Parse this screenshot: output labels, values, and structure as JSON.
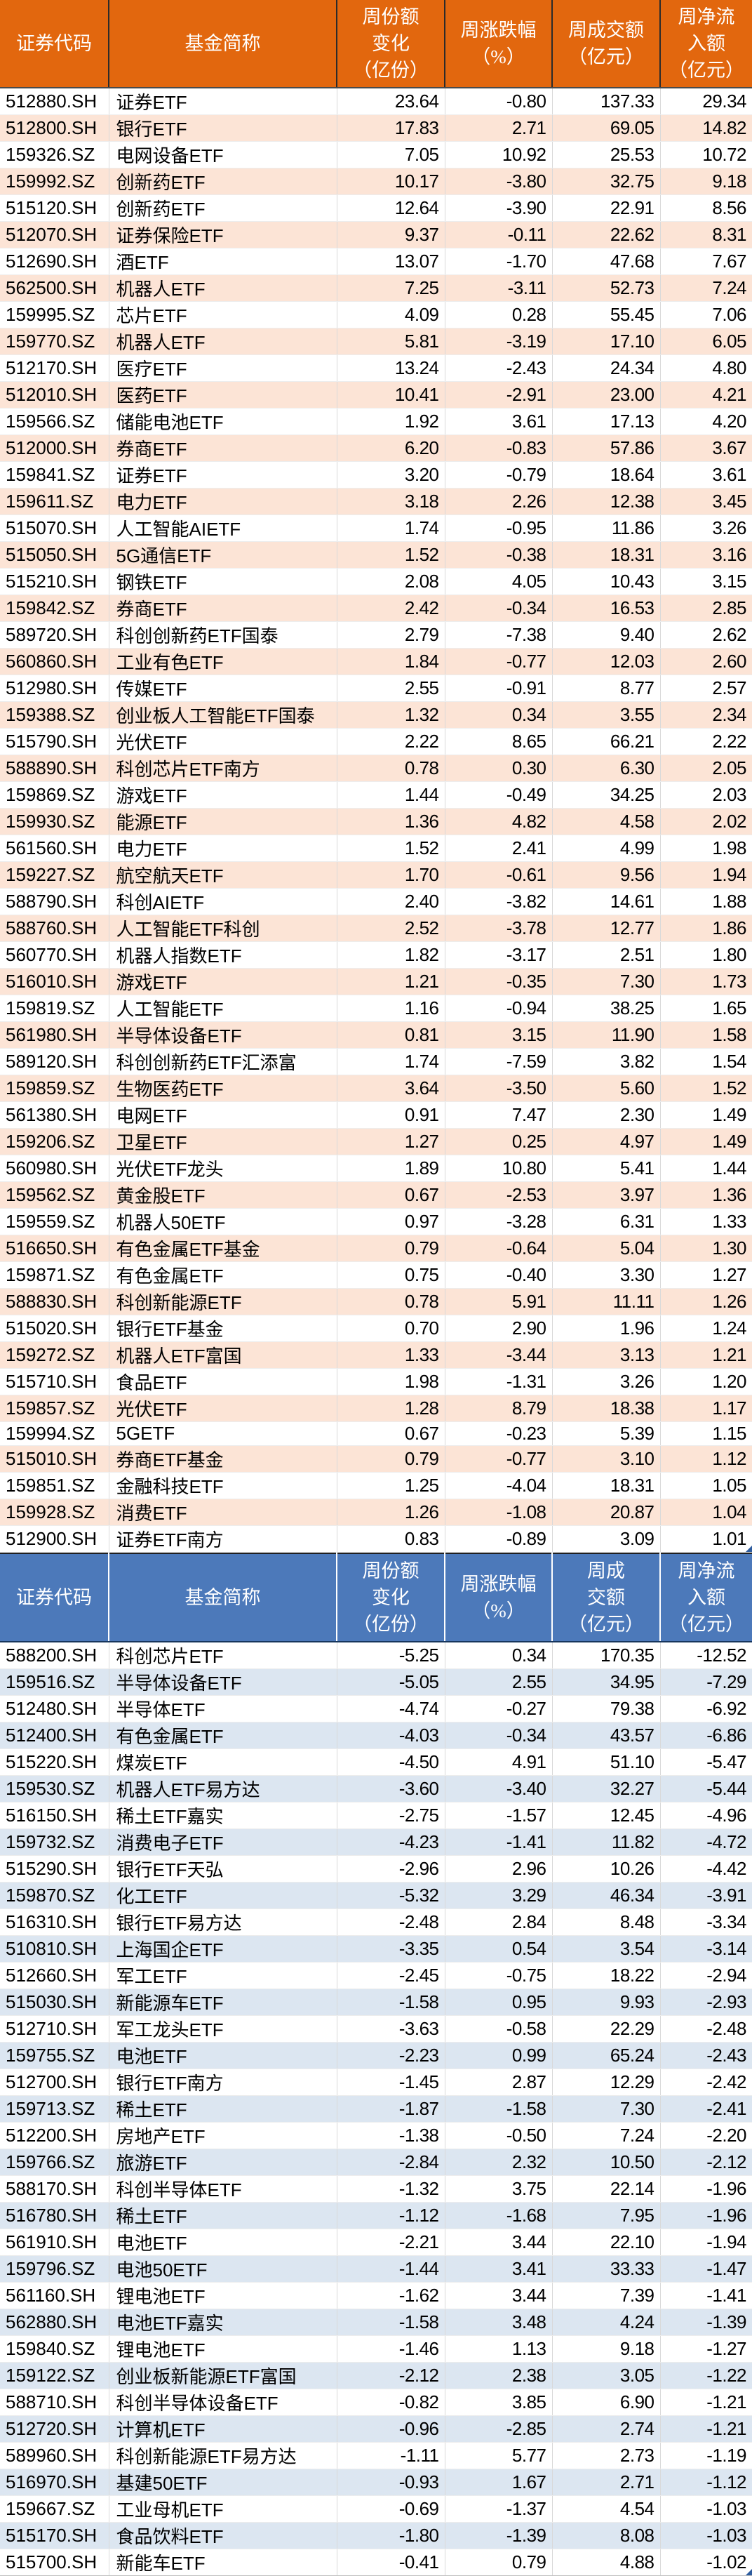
{
  "chart_data": [
    {
      "type": "table",
      "columns": [
        "证券代码",
        "基金简称",
        "周份额\n变化\n（亿份）",
        "周涨跌幅\n（%）",
        "周成交额\n（亿元）",
        "周净流\n入额\n（亿元）"
      ],
      "style": {
        "header_bg": "#E2670E",
        "alt_row_bg": "#FCE4D6",
        "header_divider": "#2B2B2B",
        "header_bottom": "#4A4A4A"
      },
      "rows": [
        [
          "512880.SH",
          "证券ETF",
          "23.64",
          "-0.80",
          "137.33",
          "29.34"
        ],
        [
          "512800.SH",
          "银行ETF",
          "17.83",
          "2.71",
          "69.05",
          "14.82"
        ],
        [
          "159326.SZ",
          "电网设备ETF",
          "7.05",
          "10.92",
          "25.53",
          "10.72"
        ],
        [
          "159992.SZ",
          "创新药ETF",
          "10.17",
          "-3.80",
          "32.75",
          "9.18"
        ],
        [
          "515120.SH",
          "创新药ETF",
          "12.64",
          "-3.90",
          "22.91",
          "8.56"
        ],
        [
          "512070.SH",
          "证券保险ETF",
          "9.37",
          "-0.11",
          "22.62",
          "8.31"
        ],
        [
          "512690.SH",
          "酒ETF",
          "13.07",
          "-1.70",
          "47.68",
          "7.67"
        ],
        [
          "562500.SH",
          "机器人ETF",
          "7.25",
          "-3.11",
          "52.73",
          "7.24"
        ],
        [
          "159995.SZ",
          "芯片ETF",
          "4.09",
          "0.28",
          "55.45",
          "7.06"
        ],
        [
          "159770.SZ",
          "机器人ETF",
          "5.81",
          "-3.19",
          "17.10",
          "6.05"
        ],
        [
          "512170.SH",
          "医疗ETF",
          "13.24",
          "-2.43",
          "24.34",
          "4.80"
        ],
        [
          "512010.SH",
          "医药ETF",
          "10.41",
          "-2.91",
          "23.00",
          "4.21"
        ],
        [
          "159566.SZ",
          "储能电池ETF",
          "1.92",
          "3.61",
          "17.13",
          "4.20"
        ],
        [
          "512000.SH",
          "券商ETF",
          "6.20",
          "-0.83",
          "57.86",
          "3.67"
        ],
        [
          "159841.SZ",
          "证券ETF",
          "3.20",
          "-0.79",
          "18.64",
          "3.61"
        ],
        [
          "159611.SZ",
          "电力ETF",
          "3.18",
          "2.26",
          "12.38",
          "3.45"
        ],
        [
          "515070.SH",
          "人工智能AIETF",
          "1.74",
          "-0.95",
          "11.86",
          "3.26"
        ],
        [
          "515050.SH",
          "5G通信ETF",
          "1.52",
          "-0.38",
          "18.31",
          "3.16"
        ],
        [
          "515210.SH",
          "钢铁ETF",
          "2.08",
          "4.05",
          "10.43",
          "3.15"
        ],
        [
          "159842.SZ",
          "券商ETF",
          "2.42",
          "-0.34",
          "16.53",
          "2.85"
        ],
        [
          "589720.SH",
          "科创创新药ETF国泰",
          "2.79",
          "-7.38",
          "9.40",
          "2.62"
        ],
        [
          "560860.SH",
          "工业有色ETF",
          "1.84",
          "-0.77",
          "12.03",
          "2.60"
        ],
        [
          "512980.SH",
          "传媒ETF",
          "2.55",
          "-0.91",
          "8.77",
          "2.57"
        ],
        [
          "159388.SZ",
          "创业板人工智能ETF国泰",
          "1.32",
          "0.34",
          "3.55",
          "2.34"
        ],
        [
          "515790.SH",
          "光伏ETF",
          "2.22",
          "8.65",
          "66.21",
          "2.22"
        ],
        [
          "588890.SH",
          "科创芯片ETF南方",
          "0.78",
          "0.30",
          "6.30",
          "2.05"
        ],
        [
          "159869.SZ",
          "游戏ETF",
          "1.44",
          "-0.49",
          "34.25",
          "2.03"
        ],
        [
          "159930.SZ",
          "能源ETF",
          "1.36",
          "4.82",
          "4.58",
          "2.02"
        ],
        [
          "561560.SH",
          "电力ETF",
          "1.52",
          "2.41",
          "4.99",
          "1.98"
        ],
        [
          "159227.SZ",
          "航空航天ETF",
          "1.70",
          "-0.61",
          "9.56",
          "1.94"
        ],
        [
          "588790.SH",
          "科创AIETF",
          "2.40",
          "-3.82",
          "14.61",
          "1.88"
        ],
        [
          "588760.SH",
          "人工智能ETF科创",
          "2.52",
          "-3.78",
          "12.77",
          "1.86"
        ],
        [
          "560770.SH",
          "机器人指数ETF",
          "1.82",
          "-3.17",
          "2.51",
          "1.80"
        ],
        [
          "516010.SH",
          "游戏ETF",
          "1.21",
          "-0.35",
          "7.30",
          "1.73"
        ],
        [
          "159819.SZ",
          "人工智能ETF",
          "1.16",
          "-0.94",
          "38.25",
          "1.65"
        ],
        [
          "561980.SH",
          "半导体设备ETF",
          "0.81",
          "3.15",
          "11.90",
          "1.58"
        ],
        [
          "589120.SH",
          "科创创新药ETF汇添富",
          "1.74",
          "-7.59",
          "3.82",
          "1.54"
        ],
        [
          "159859.SZ",
          "生物医药ETF",
          "3.64",
          "-3.50",
          "5.60",
          "1.52"
        ],
        [
          "561380.SH",
          "电网ETF",
          "0.91",
          "7.47",
          "2.30",
          "1.49"
        ],
        [
          "159206.SZ",
          "卫星ETF",
          "1.27",
          "0.25",
          "4.97",
          "1.49"
        ],
        [
          "560980.SH",
          "光伏ETF龙头",
          "1.89",
          "10.80",
          "5.41",
          "1.44"
        ],
        [
          "159562.SZ",
          "黄金股ETF",
          "0.67",
          "-2.53",
          "3.97",
          "1.36"
        ],
        [
          "159559.SZ",
          "机器人50ETF",
          "0.97",
          "-3.28",
          "6.31",
          "1.33"
        ],
        [
          "516650.SH",
          "有色金属ETF基金",
          "0.79",
          "-0.64",
          "5.04",
          "1.30"
        ],
        [
          "159871.SZ",
          "有色金属ETF",
          "0.75",
          "-0.40",
          "3.30",
          "1.27"
        ],
        [
          "588830.SH",
          "科创新能源ETF",
          "0.78",
          "5.91",
          "11.11",
          "1.26"
        ],
        [
          "515020.SH",
          "银行ETF基金",
          "0.70",
          "2.90",
          "1.96",
          "1.24"
        ],
        [
          "159272.SZ",
          "机器人ETF富国",
          "1.33",
          "-3.44",
          "3.13",
          "1.21"
        ],
        [
          "515710.SH",
          "食品ETF",
          "1.98",
          "-1.31",
          "3.26",
          "1.20"
        ],
        [
          "159857.SZ",
          "光伏ETF",
          "1.28",
          "8.79",
          "18.38",
          "1.17"
        ],
        [
          "159994.SZ",
          "5GETF",
          "0.67",
          "-0.23",
          "5.39",
          "1.15"
        ],
        [
          "515010.SH",
          "券商ETF基金",
          "0.79",
          "-0.77",
          "3.10",
          "1.12"
        ],
        [
          "159851.SZ",
          "金融科技ETF",
          "1.25",
          "-4.04",
          "18.31",
          "1.05"
        ],
        [
          "159928.SZ",
          "消费ETF",
          "1.26",
          "-1.08",
          "20.87",
          "1.04"
        ],
        [
          "512900.SH",
          "证券ETF南方",
          "0.83",
          "-0.89",
          "3.09",
          "1.01"
        ]
      ]
    },
    {
      "type": "table",
      "columns": [
        "证券代码",
        "基金简称",
        "周份额\n变化\n（亿份）",
        "周涨跌幅\n（%）",
        "周成\n交额\n（亿元）",
        "周净流\n入额\n（亿元）"
      ],
      "style": {
        "header_bg": "#4C79BA",
        "alt_row_bg": "#DCE6F1",
        "header_divider": "#FFFFFF",
        "header_bottom": "#17365D"
      },
      "rows": [
        [
          "588200.SH",
          "科创芯片ETF",
          "-5.25",
          "0.34",
          "170.35",
          "-12.52"
        ],
        [
          "159516.SZ",
          "半导体设备ETF",
          "-5.05",
          "2.55",
          "34.95",
          "-7.29"
        ],
        [
          "512480.SH",
          "半导体ETF",
          "-4.74",
          "-0.27",
          "79.38",
          "-6.92"
        ],
        [
          "512400.SH",
          "有色金属ETF",
          "-4.03",
          "-0.34",
          "43.57",
          "-6.86"
        ],
        [
          "515220.SH",
          "煤炭ETF",
          "-4.50",
          "4.91",
          "51.10",
          "-5.47"
        ],
        [
          "159530.SZ",
          "机器人ETF易方达",
          "-3.60",
          "-3.40",
          "32.27",
          "-5.44"
        ],
        [
          "516150.SH",
          "稀土ETF嘉实",
          "-2.75",
          "-1.57",
          "12.45",
          "-4.96"
        ],
        [
          "159732.SZ",
          "消费电子ETF",
          "-4.23",
          "-1.41",
          "11.82",
          "-4.72"
        ],
        [
          "515290.SH",
          "银行ETF天弘",
          "-2.96",
          "2.96",
          "10.26",
          "-4.42"
        ],
        [
          "159870.SZ",
          "化工ETF",
          "-5.32",
          "3.29",
          "46.34",
          "-3.91"
        ],
        [
          "516310.SH",
          "银行ETF易方达",
          "-2.48",
          "2.84",
          "8.48",
          "-3.34"
        ],
        [
          "510810.SH",
          "上海国企ETF",
          "-3.35",
          "0.54",
          "3.54",
          "-3.14"
        ],
        [
          "512660.SH",
          "军工ETF",
          "-2.45",
          "-0.75",
          "18.22",
          "-2.94"
        ],
        [
          "515030.SH",
          "新能源车ETF",
          "-1.58",
          "0.95",
          "9.93",
          "-2.93"
        ],
        [
          "512710.SH",
          "军工龙头ETF",
          "-3.63",
          "-0.58",
          "22.29",
          "-2.48"
        ],
        [
          "159755.SZ",
          "电池ETF",
          "-2.23",
          "0.99",
          "65.24",
          "-2.43"
        ],
        [
          "512700.SH",
          "银行ETF南方",
          "-1.45",
          "2.87",
          "12.29",
          "-2.42"
        ],
        [
          "159713.SZ",
          "稀土ETF",
          "-1.87",
          "-1.58",
          "7.30",
          "-2.41"
        ],
        [
          "512200.SH",
          "房地产ETF",
          "-1.38",
          "-0.50",
          "7.24",
          "-2.20"
        ],
        [
          "159766.SZ",
          "旅游ETF",
          "-2.84",
          "2.32",
          "10.50",
          "-2.12"
        ],
        [
          "588170.SH",
          "科创半导体ETF",
          "-1.32",
          "3.75",
          "22.14",
          "-1.96"
        ],
        [
          "516780.SH",
          "稀土ETF",
          "-1.12",
          "-1.68",
          "7.95",
          "-1.96"
        ],
        [
          "561910.SH",
          "电池ETF",
          "-2.21",
          "3.44",
          "22.10",
          "-1.94"
        ],
        [
          "159796.SZ",
          "电池50ETF",
          "-1.44",
          "3.41",
          "33.33",
          "-1.47"
        ],
        [
          "561160.SH",
          "锂电池ETF",
          "-1.62",
          "3.44",
          "7.39",
          "-1.41"
        ],
        [
          "562880.SH",
          "电池ETF嘉实",
          "-1.58",
          "3.48",
          "4.24",
          "-1.39"
        ],
        [
          "159840.SZ",
          "锂电池ETF",
          "-1.46",
          "1.13",
          "9.18",
          "-1.27"
        ],
        [
          "159122.SZ",
          "创业板新能源ETF富国",
          "-2.12",
          "2.38",
          "3.05",
          "-1.22"
        ],
        [
          "588710.SH",
          "科创半导体设备ETF",
          "-0.82",
          "3.85",
          "6.90",
          "-1.21"
        ],
        [
          "512720.SH",
          "计算机ETF",
          "-0.96",
          "-2.85",
          "2.74",
          "-1.21"
        ],
        [
          "589960.SH",
          "科创新能源ETF易方达",
          "-1.11",
          "5.77",
          "2.73",
          "-1.19"
        ],
        [
          "516970.SH",
          "基建50ETF",
          "-0.93",
          "1.67",
          "2.71",
          "-1.12"
        ],
        [
          "159667.SZ",
          "工业母机ETF",
          "-0.69",
          "-1.37",
          "4.54",
          "-1.03"
        ],
        [
          "515170.SH",
          "食品饮料ETF",
          "-1.80",
          "-1.39",
          "8.08",
          "-1.03"
        ],
        [
          "515700.SH",
          "新能车ETF",
          "-0.41",
          "0.79",
          "4.88",
          "-1.02"
        ]
      ]
    }
  ]
}
